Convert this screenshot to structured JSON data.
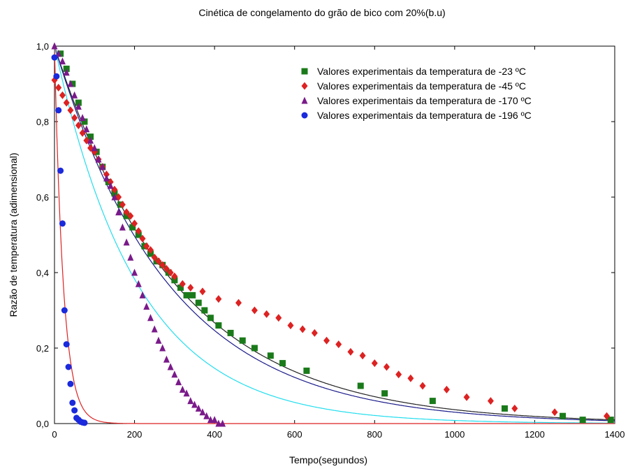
{
  "chart_data": {
    "type": "scatter",
    "title": "Cinética de congelamento do grão de bico com 20%(b.u)",
    "xlabel": "Tempo(segundos)",
    "ylabel": "Razão de temperatura (adimensional)",
    "xlim": [
      0,
      1400
    ],
    "ylim": [
      0,
      1.0
    ],
    "x_ticks": [
      "0",
      "200",
      "400",
      "600",
      "800",
      "1000",
      "1200",
      "1400"
    ],
    "y_ticks": [
      "0,0",
      "0,2",
      "0,4",
      "0,6",
      "0,8",
      "1,0"
    ],
    "x_tick_values": [
      0,
      200,
      400,
      600,
      800,
      1000,
      1200,
      1400
    ],
    "y_tick_values": [
      0,
      0.2,
      0.4,
      0.6,
      0.8,
      1.0
    ],
    "grid": false,
    "legend_position": "top-right",
    "series": [
      {
        "name": "Valores experimentais da temperatura de -23 ºC",
        "marker": "square",
        "color": "#1a7a1a",
        "x": [
          15,
          30,
          45,
          60,
          75,
          90,
          105,
          120,
          135,
          150,
          165,
          180,
          195,
          210,
          225,
          240,
          255,
          270,
          285,
          300,
          315,
          330,
          345,
          360,
          375,
          390,
          410,
          440,
          470,
          500,
          540,
          570,
          630,
          765,
          825,
          945,
          1125,
          1270,
          1320,
          1390
        ],
        "y": [
          0.98,
          0.94,
          0.9,
          0.85,
          0.8,
          0.76,
          0.72,
          0.68,
          0.64,
          0.61,
          0.58,
          0.55,
          0.52,
          0.5,
          0.47,
          0.45,
          0.43,
          0.42,
          0.4,
          0.38,
          0.36,
          0.34,
          0.34,
          0.32,
          0.3,
          0.28,
          0.26,
          0.24,
          0.22,
          0.2,
          0.18,
          0.16,
          0.14,
          0.1,
          0.08,
          0.06,
          0.04,
          0.02,
          0.01,
          0.01
        ]
      },
      {
        "name": "Valores experimentais da temperatura de -45 ºC",
        "marker": "diamond",
        "color": "#dd2222",
        "x": [
          0,
          10,
          20,
          30,
          40,
          50,
          60,
          70,
          80,
          90,
          100,
          110,
          120,
          130,
          140,
          150,
          160,
          170,
          180,
          190,
          200,
          210,
          220,
          230,
          240,
          250,
          260,
          270,
          280,
          290,
          300,
          320,
          340,
          370,
          410,
          460,
          500,
          530,
          560,
          590,
          620,
          650,
          680,
          710,
          740,
          770,
          800,
          830,
          860,
          890,
          920,
          980,
          1030,
          1090,
          1150,
          1250,
          1380
        ],
        "y": [
          0.91,
          0.89,
          0.87,
          0.85,
          0.83,
          0.81,
          0.79,
          0.77,
          0.75,
          0.73,
          0.72,
          0.7,
          0.68,
          0.66,
          0.64,
          0.62,
          0.6,
          0.58,
          0.56,
          0.55,
          0.53,
          0.51,
          0.49,
          0.47,
          0.46,
          0.44,
          0.43,
          0.42,
          0.41,
          0.4,
          0.39,
          0.37,
          0.36,
          0.35,
          0.33,
          0.32,
          0.3,
          0.29,
          0.28,
          0.26,
          0.25,
          0.24,
          0.22,
          0.21,
          0.19,
          0.18,
          0.16,
          0.15,
          0.13,
          0.12,
          0.1,
          0.09,
          0.07,
          0.06,
          0.04,
          0.03,
          0.02
        ]
      },
      {
        "name": "Valores experimentais da temperatura de -170 ºC",
        "marker": "triangle",
        "color": "#7a1a8a",
        "x": [
          0,
          10,
          20,
          30,
          40,
          50,
          60,
          70,
          80,
          90,
          100,
          110,
          120,
          130,
          140,
          150,
          160,
          170,
          180,
          190,
          200,
          210,
          220,
          230,
          240,
          250,
          260,
          270,
          280,
          290,
          300,
          310,
          320,
          330,
          340,
          350,
          360,
          370,
          380,
          390,
          400,
          410,
          420
        ],
        "y": [
          1.0,
          0.98,
          0.96,
          0.93,
          0.9,
          0.87,
          0.84,
          0.81,
          0.78,
          0.75,
          0.73,
          0.7,
          0.68,
          0.65,
          0.63,
          0.6,
          0.56,
          0.52,
          0.48,
          0.44,
          0.4,
          0.37,
          0.34,
          0.31,
          0.28,
          0.25,
          0.22,
          0.2,
          0.17,
          0.15,
          0.13,
          0.11,
          0.09,
          0.08,
          0.06,
          0.05,
          0.04,
          0.03,
          0.02,
          0.01,
          0.01,
          0.0,
          0.0
        ]
      },
      {
        "name": "Valores experimentais da temperatura de -196 ºC",
        "marker": "circle",
        "color": "#1a2adc",
        "x": [
          0,
          5,
          10,
          15,
          20,
          25,
          30,
          35,
          40,
          45,
          50,
          55,
          60,
          65,
          70,
          75
        ],
        "y": [
          0.97,
          0.92,
          0.83,
          0.67,
          0.53,
          0.3,
          0.21,
          0.15,
          0.105,
          0.055,
          0.035,
          0.015,
          0.01,
          0.005,
          0.003,
          0.002
        ]
      }
    ],
    "fitted_curves": [
      {
        "color": "#222222",
        "k": 0.0033
      },
      {
        "color": "#1a1a8a",
        "k": 0.0035
      },
      {
        "color": "#22ddee",
        "k": 0.0048
      },
      {
        "color": "#dd2222",
        "k": 0.045
      }
    ]
  }
}
